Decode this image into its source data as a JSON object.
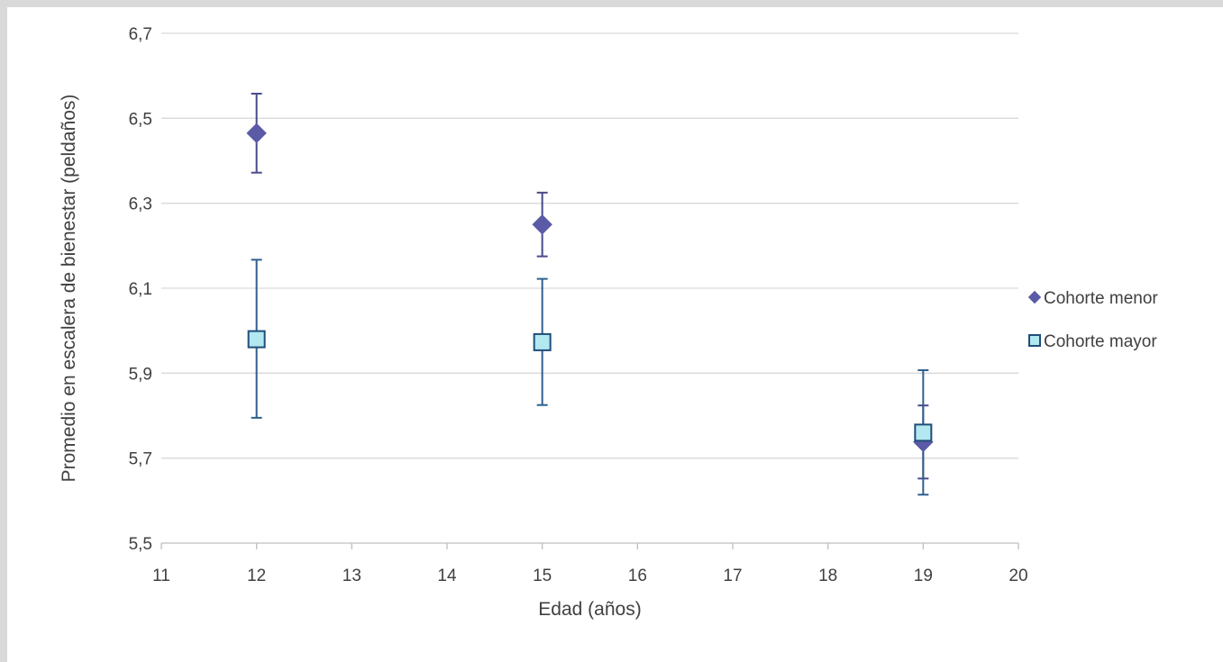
{
  "chart_data": {
    "type": "scatter",
    "xlabel": "Edad (años)",
    "ylabel": "Promedio en escalera de bienestar (peldaños)",
    "xlim": [
      11,
      20
    ],
    "ylim": [
      5.5,
      6.7
    ],
    "xticks": [
      "11",
      "12",
      "13",
      "14",
      "15",
      "16",
      "17",
      "18",
      "19",
      "20"
    ],
    "yticks": [
      "5,5",
      "5,7",
      "5,9",
      "6,1",
      "6,3",
      "6,5",
      "6,7"
    ],
    "grid": true,
    "legend_position": "right",
    "series": [
      {
        "name": "Cohorte menor",
        "marker": "diamond",
        "color": "#5b5aa6",
        "error_color": "#4a4a8c",
        "points": [
          {
            "x": 12,
            "y": 6.465,
            "err_low": 6.372,
            "err_high": 6.558
          },
          {
            "x": 15,
            "y": 6.25,
            "err_low": 6.175,
            "err_high": 6.325
          },
          {
            "x": 19,
            "y": 5.738,
            "err_low": 5.652,
            "err_high": 5.824
          }
        ]
      },
      {
        "name": "Cohorte mayor",
        "marker": "square",
        "color": "#b2e8f0",
        "error_color": "#2f5f8f",
        "points": [
          {
            "x": 12,
            "y": 5.98,
            "err_low": 5.795,
            "err_high": 6.167
          },
          {
            "x": 15,
            "y": 5.973,
            "err_low": 5.825,
            "err_high": 6.122
          },
          {
            "x": 19,
            "y": 5.76,
            "err_low": 5.614,
            "err_high": 5.907
          }
        ]
      }
    ]
  }
}
